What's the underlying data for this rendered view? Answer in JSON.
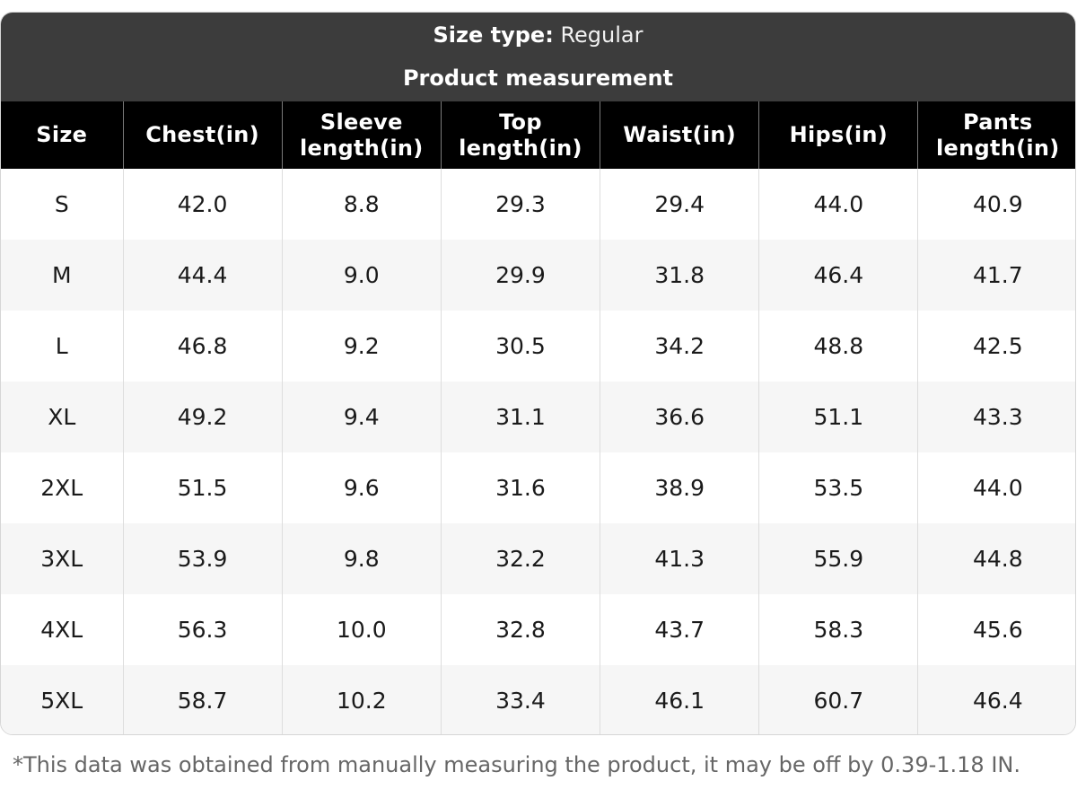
{
  "header": {
    "size_type_label": "Size type:",
    "size_type_value": "Regular",
    "section_title": "Product measurement"
  },
  "table": {
    "columns": [
      "Size",
      "Chest(in)",
      "Sleeve length(in)",
      "Top length(in)",
      "Waist(in)",
      "Hips(in)",
      "Pants length(in)"
    ],
    "rows": [
      [
        "S",
        "42.0",
        "8.8",
        "29.3",
        "29.4",
        "44.0",
        "40.9"
      ],
      [
        "M",
        "44.4",
        "9.0",
        "29.9",
        "31.8",
        "46.4",
        "41.7"
      ],
      [
        "L",
        "46.8",
        "9.2",
        "30.5",
        "34.2",
        "48.8",
        "42.5"
      ],
      [
        "XL",
        "49.2",
        "9.4",
        "31.1",
        "36.6",
        "51.1",
        "43.3"
      ],
      [
        "2XL",
        "51.5",
        "9.6",
        "31.6",
        "38.9",
        "53.5",
        "44.0"
      ],
      [
        "3XL",
        "53.9",
        "9.8",
        "32.2",
        "41.3",
        "55.9",
        "44.8"
      ],
      [
        "4XL",
        "56.3",
        "10.0",
        "32.8",
        "43.7",
        "58.3",
        "45.6"
      ],
      [
        "5XL",
        "58.7",
        "10.2",
        "33.4",
        "46.1",
        "60.7",
        "46.4"
      ]
    ]
  },
  "footnote": "*This data was obtained from manually measuring the product, it may be off by 0.39-1.18 IN."
}
